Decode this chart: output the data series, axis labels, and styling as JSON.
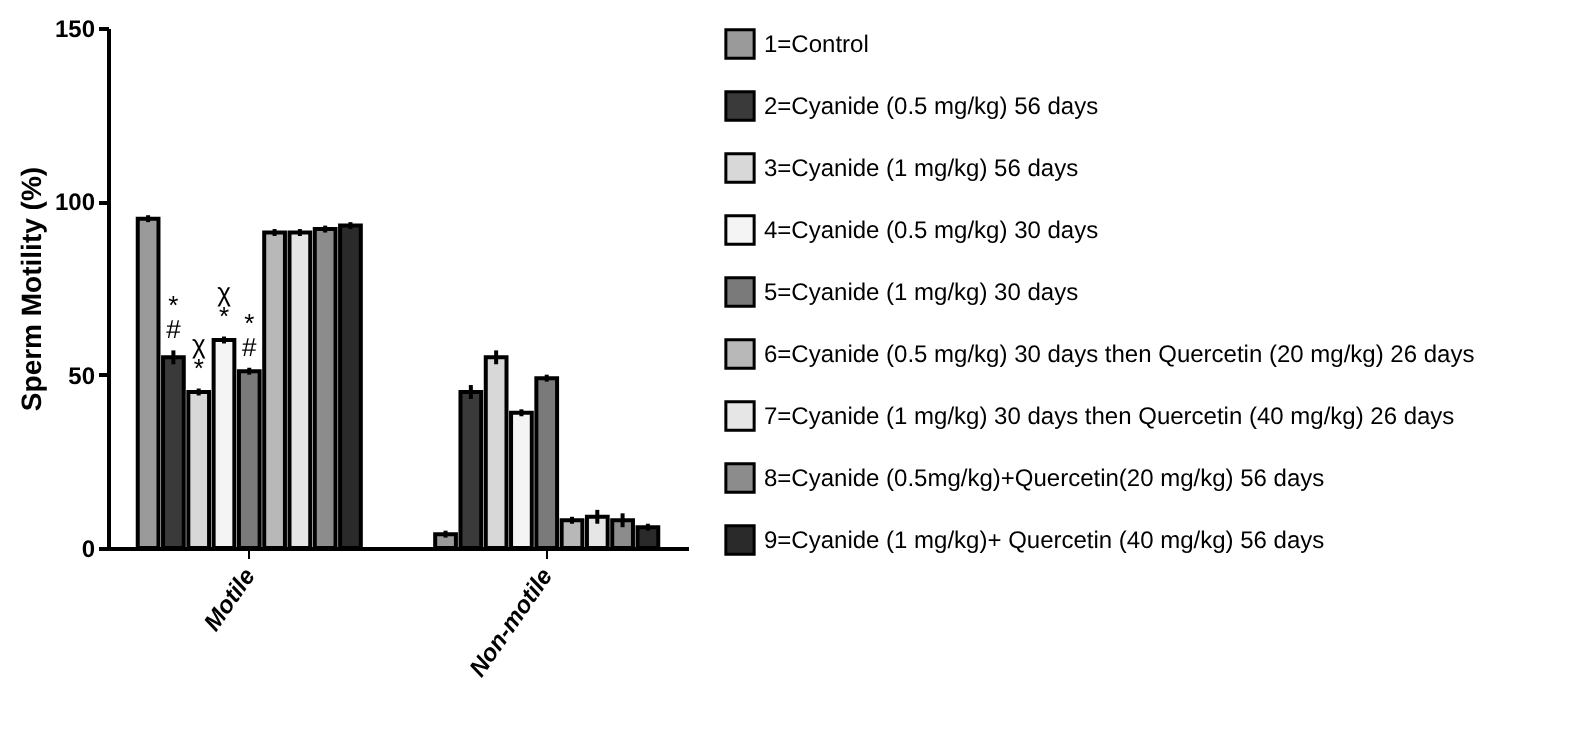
{
  "chart_data": {
    "type": "bar",
    "ylabel": "Sperm Motility (%)",
    "categories": [
      "Motile",
      "Non-motile"
    ],
    "ylim": [
      0,
      150
    ],
    "yticks": [
      0,
      50,
      100,
      150
    ],
    "legend": "right",
    "grid": false,
    "series": [
      {
        "name": "1=Control",
        "color": "#9a9a9a",
        "values": [
          95,
          4
        ],
        "errors": [
          1,
          1
        ]
      },
      {
        "name": "2=Cyanide (0.5 mg/kg) 56 days",
        "color": "#3a3a3a",
        "values": [
          55,
          45
        ],
        "errors": [
          2,
          2
        ],
        "value_labels": [
          "*\n#",
          null
        ]
      },
      {
        "name": "3=Cyanide (1 mg/kg) 56 days",
        "color": "#d8d8d8",
        "values": [
          45,
          55
        ],
        "errors": [
          1,
          2
        ],
        "value_labels": [
          "χ\n*",
          null
        ]
      },
      {
        "name": "4=Cyanide (0.5 mg/kg) 30 days",
        "color": "#f4f4f4",
        "values": [
          60,
          39
        ],
        "errors": [
          1,
          1
        ],
        "value_labels": [
          "χ\n*",
          null
        ]
      },
      {
        "name": "5=Cyanide (1 mg/kg) 30 days",
        "color": "#7a7a7a",
        "values": [
          51,
          49
        ],
        "errors": [
          1,
          1
        ],
        "value_labels": [
          "*\n#",
          null
        ]
      },
      {
        "name": "6=Cyanide (0.5 mg/kg) 30 days then Quercetin (20 mg/kg) 26 days",
        "color": "#b8b8b8",
        "values": [
          91,
          8
        ],
        "errors": [
          1,
          1
        ]
      },
      {
        "name": "7=Cyanide (1 mg/kg) 30 days then Quercetin (40 mg/kg) 26 days",
        "color": "#e6e6e6",
        "values": [
          91,
          9
        ],
        "errors": [
          1,
          2
        ]
      },
      {
        "name": "8=Cyanide (0.5mg/kg)+Quercetin(20 mg/kg) 56 days",
        "color": "#8c8c8c",
        "values": [
          92,
          8
        ],
        "errors": [
          1,
          2
        ]
      },
      {
        "name": "9=Cyanide (1 mg/kg)+ Quercetin (40 mg/kg) 56 days",
        "color": "#2a2a2a",
        "values": [
          93,
          6
        ],
        "errors": [
          1,
          1
        ]
      }
    ]
  }
}
